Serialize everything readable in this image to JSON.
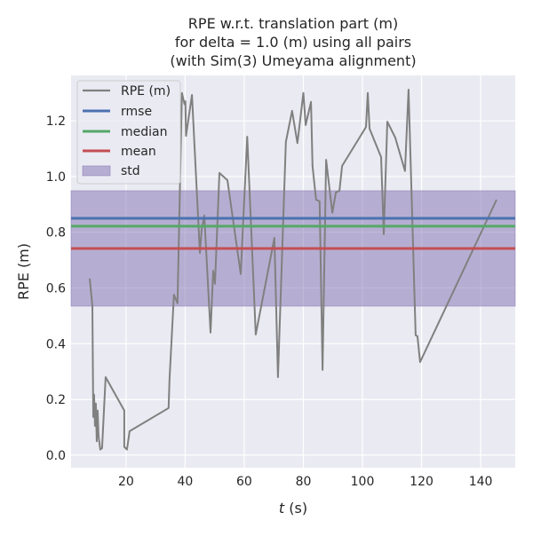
{
  "chart_data": {
    "type": "line",
    "title": [
      "RPE w.r.t. translation part (m)",
      "for delta = 1.0 (m) using all pairs",
      "(with Sim(3) Umeyama alignment)"
    ],
    "xlabel": "t (s)",
    "xlabel_italic": "t",
    "xlabel_unit": " (s)",
    "ylabel": "RPE (m)",
    "xlim": [
      1.4,
      151.7
    ],
    "ylim": [
      -0.045,
      1.363
    ],
    "xticks": [
      20,
      40,
      60,
      80,
      100,
      120,
      140
    ],
    "xtick_labels": [
      "20",
      "40",
      "60",
      "80",
      "100",
      "120",
      "140"
    ],
    "yticks": [
      0.0,
      0.2,
      0.4,
      0.6,
      0.8,
      1.0,
      1.2
    ],
    "ytick_labels": [
      "0.0",
      "0.2",
      "0.4",
      "0.6",
      "0.8",
      "1.0",
      "1.2"
    ],
    "grid": true,
    "legend_placement": "top-left",
    "legend": [
      "RPE (m)",
      "rmse",
      "median",
      "mean",
      "std"
    ],
    "colors": {
      "rpe": "#808080",
      "rmse": "#4c72b0",
      "median": "#55a868",
      "mean": "#c44e52",
      "std": "#8172b2",
      "background": "#eaeaf2"
    },
    "stats": {
      "rmse": 0.85,
      "median": 0.822,
      "mean": 0.742,
      "std_band": [
        0.535,
        0.949
      ]
    },
    "series": [
      {
        "name": "RPE (m)",
        "x": [
          7.7,
          8.6,
          8.9,
          9.2,
          9.5,
          9.8,
          10.1,
          10.4,
          10.7,
          11.3,
          11.9,
          13.1,
          19.4,
          19.4,
          20.3,
          21.2,
          34.4,
          34.7,
          36.2,
          37.4,
          38.9,
          39.8,
          40.1,
          40.3,
          42.3,
          45.0,
          45.6,
          46.5,
          48.6,
          49.5,
          50.1,
          51.6,
          54.3,
          58.8,
          61.0,
          63.9,
          70.2,
          71.4,
          74.1,
          76.2,
          78.0,
          80.0,
          80.8,
          82.6,
          83.1,
          84.3,
          85.5,
          86.5,
          87.7,
          89.8,
          91.0,
          92.2,
          93.1,
          101.2,
          101.8,
          102.4,
          106.3,
          107.2,
          108.4,
          111.1,
          114.4,
          115.6,
          118.0,
          118.6,
          119.5,
          145.4
        ],
        "y": [
          0.634,
          0.535,
          0.137,
          0.217,
          0.105,
          0.185,
          0.05,
          0.16,
          0.07,
          0.02,
          0.025,
          0.28,
          0.16,
          0.03,
          0.02,
          0.086,
          0.169,
          0.27,
          0.576,
          0.545,
          1.3,
          1.26,
          1.27,
          1.146,
          1.293,
          0.726,
          0.81,
          0.86,
          0.44,
          0.662,
          0.615,
          1.013,
          0.987,
          0.65,
          1.143,
          0.433,
          0.78,
          0.28,
          1.124,
          1.236,
          1.12,
          1.3,
          1.185,
          1.268,
          1.038,
          0.917,
          0.911,
          0.306,
          1.06,
          0.87,
          0.943,
          0.949,
          1.038,
          1.178,
          1.3,
          1.172,
          1.07,
          0.793,
          1.197,
          1.14,
          1.02,
          1.312,
          0.43,
          0.427,
          0.334,
          0.917
        ]
      }
    ]
  }
}
